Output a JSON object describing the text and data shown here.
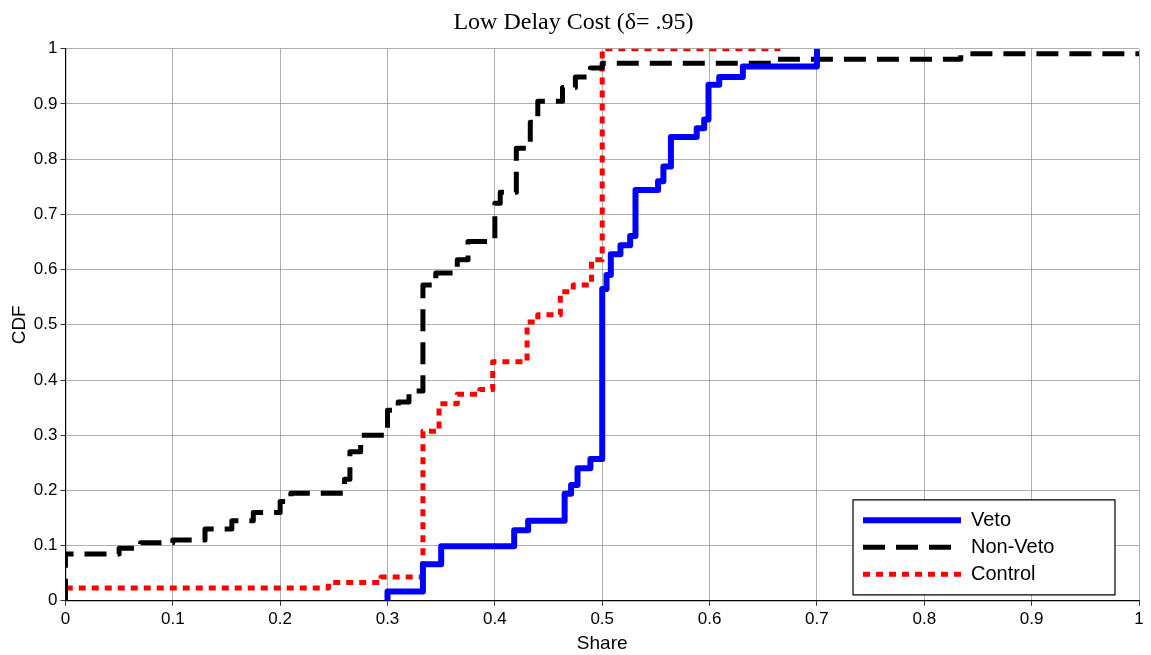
{
  "chart_data": {
    "type": "step",
    "title": "Low Delay Cost (δ= .95)",
    "xlabel": "Share",
    "ylabel": "CDF",
    "xlim": [
      0,
      1
    ],
    "xticks": [
      0,
      0.1,
      0.2,
      0.3,
      0.4,
      0.5,
      0.6,
      0.7,
      0.8,
      0.9,
      1
    ],
    "ylim": [
      0,
      1
    ],
    "yticks": [
      0,
      0.1,
      0.2,
      0.3,
      0.4,
      0.5,
      0.6,
      0.7,
      0.8,
      0.9,
      1
    ],
    "grid": true,
    "legend": "bottom right",
    "marker": "none",
    "series": [
      {
        "name": "Veto",
        "color": "#0000ff",
        "line_style": "solid",
        "x": [
          0.3,
          0.3,
          0.333,
          0.35,
          0.418,
          0.431,
          0.465,
          0.471,
          0.477,
          0.489,
          0.5,
          0.504,
          0.508,
          0.517,
          0.526,
          0.531,
          0.552,
          0.557,
          0.564,
          0.588,
          0.595,
          0.599,
          0.609,
          0.631,
          0.7
        ],
        "values": [
          0,
          0.017,
          0.066,
          0.099,
          0.128,
          0.145,
          0.194,
          0.21,
          0.24,
          0.257,
          0.565,
          0.59,
          0.628,
          0.644,
          0.661,
          0.744,
          0.76,
          0.787,
          0.84,
          0.856,
          0.872,
          0.935,
          0.949,
          0.968,
          1
        ]
      },
      {
        "name": "Non-Veto",
        "color": "#000000",
        "line_style": "dashed",
        "x": [
          0,
          0,
          0.05,
          0.07,
          0.1,
          0.13,
          0.155,
          0.175,
          0.2,
          0.21,
          0.26,
          0.265,
          0.275,
          0.3,
          0.31,
          0.32,
          0.333,
          0.345,
          0.365,
          0.375,
          0.4,
          0.405,
          0.42,
          0.433,
          0.44,
          0.463,
          0.475,
          0.489,
          0.5,
          0.663,
          0.834,
          1
        ],
        "values": [
          0,
          0.085,
          0.095,
          0.105,
          0.11,
          0.13,
          0.145,
          0.16,
          0.18,
          0.195,
          0.22,
          0.27,
          0.3,
          0.345,
          0.36,
          0.38,
          0.572,
          0.594,
          0.618,
          0.651,
          0.72,
          0.74,
          0.82,
          0.867,
          0.905,
          0.93,
          0.949,
          0.965,
          0.974,
          0.981,
          0.991,
          0.991
        ]
      },
      {
        "name": "Control",
        "color": "#ff0000",
        "line_style": "dotted",
        "x": [
          0,
          0,
          0.245,
          0.294,
          0.333,
          0.348,
          0.365,
          0.386,
          0.398,
          0.43,
          0.44,
          0.461,
          0.473,
          0.49,
          0.5,
          0.666
        ],
        "values": [
          0,
          0.023,
          0.033,
          0.043,
          0.307,
          0.357,
          0.374,
          0.383,
          0.433,
          0.505,
          0.518,
          0.56,
          0.572,
          0.618,
          1,
          1
        ]
      }
    ]
  }
}
